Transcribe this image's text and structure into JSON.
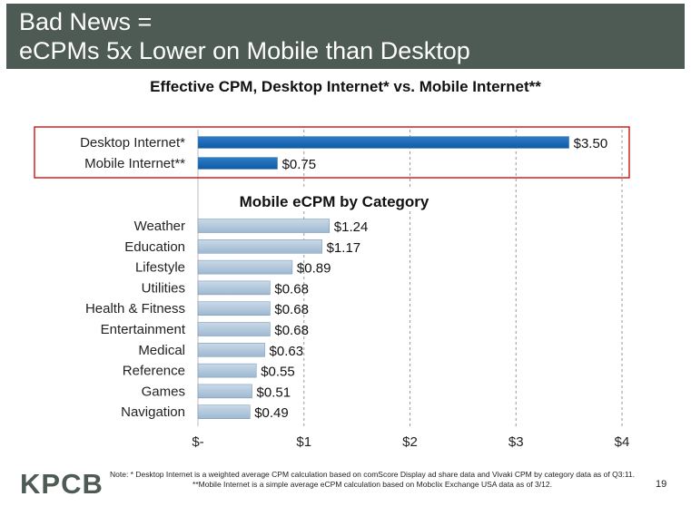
{
  "slide": {
    "title_line1": "Bad News =",
    "title_line2": "eCPMs 5x Lower on Mobile than Desktop",
    "logo": "KPCB",
    "footnote": "Note: * Desktop Internet is a weighted average CPM calculation based on comScore Display ad share data and Vivaki CPM by category data as of Q3:11. **Mobile Internet is a simple average eCPM calculation based on Mobclix Exchange USA data as of 3/12.",
    "page_number": "19"
  },
  "chart_data": {
    "type": "bar",
    "orientation": "horizontal",
    "title": "Effective CPM, Desktop Internet* vs. Mobile Internet**",
    "xlim": [
      0,
      4
    ],
    "x_ticks": [
      {
        "value": 0,
        "label": "$-"
      },
      {
        "value": 1,
        "label": "$1"
      },
      {
        "value": 2,
        "label": "$2"
      },
      {
        "value": 3,
        "label": "$3"
      },
      {
        "value": 4,
        "label": "$4"
      }
    ],
    "grid": "vertical dashed",
    "groups": [
      {
        "name": "",
        "highlighted": true,
        "bar_color": "#0d5aa7",
        "categories": [
          "Desktop Internet*",
          "Mobile Internet**"
        ],
        "values": [
          3.5,
          0.75
        ],
        "labels": [
          "$3.50",
          "$0.75"
        ]
      },
      {
        "name": "Mobile eCPM by Category",
        "highlighted": false,
        "bar_color": "#9eb8d1",
        "categories": [
          "Weather",
          "Education",
          "Lifestyle",
          "Utilities",
          "Health & Fitness",
          "Entertainment",
          "Medical",
          "Reference",
          "Games",
          "Navigation"
        ],
        "values": [
          1.24,
          1.17,
          0.89,
          0.68,
          0.68,
          0.68,
          0.63,
          0.55,
          0.51,
          0.49
        ],
        "labels": [
          "$1.24",
          "$1.17",
          "$0.89",
          "$0.68",
          "$0.68",
          "$0.68",
          "$0.63",
          "$0.55",
          "$0.51",
          "$0.49"
        ]
      }
    ],
    "highlight_color": "#d22020"
  }
}
